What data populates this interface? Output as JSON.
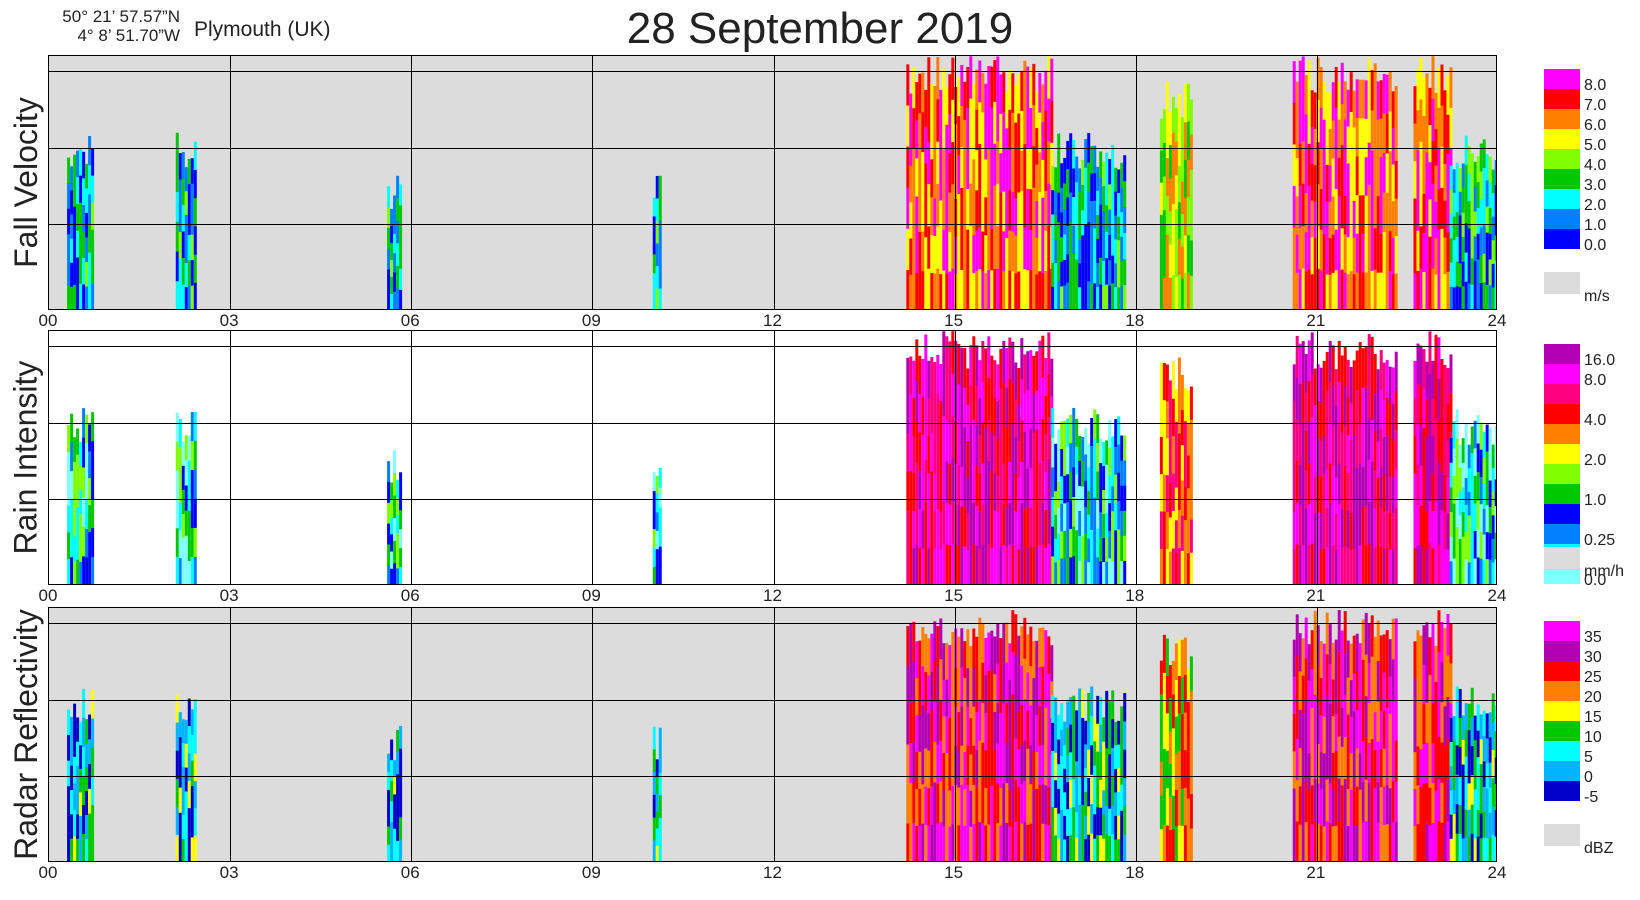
{
  "header": {
    "lat": "50° 21’ 57.57”N",
    "lon": "4°  8’ 51.70”W",
    "location": "Plymouth (UK)",
    "title": "28 September  2019"
  },
  "x_ticks": [
    "00",
    "03",
    "06",
    "09",
    "12",
    "15",
    "18",
    "21",
    "24"
  ],
  "colors": {
    "panel_bg_gray": "#dcdcdc",
    "panel_bg_white": "#ffffff",
    "nodata_swatch": "#dcdcdc"
  },
  "panels": [
    {
      "ylabel": "Fall Velocity",
      "unit": "m/s",
      "bg": "gray",
      "legend": [
        {
          "label": "8.0",
          "color": "#ff00ff"
        },
        {
          "label": "7.0",
          "color": "#ff0000"
        },
        {
          "label": "6.0",
          "color": "#ff8000"
        },
        {
          "label": "5.0",
          "color": "#ffff00"
        },
        {
          "label": "4.0",
          "color": "#80ff00"
        },
        {
          "label": "3.0",
          "color": "#00c800"
        },
        {
          "label": "2.0",
          "color": "#00ffff"
        },
        {
          "label": "1.0",
          "color": "#0080ff"
        },
        {
          "label": "0.0",
          "color": "#0000ff"
        }
      ]
    },
    {
      "ylabel": "Rain Intensity",
      "unit": "mm/h",
      "bg": "white",
      "legend": [
        {
          "label": "16.0",
          "color": "#b400b4"
        },
        {
          "label": "8.0",
          "color": "#ff00ff"
        },
        {
          "label": "",
          "color": "#ff0080"
        },
        {
          "label": "4.0",
          "color": "#ff0000"
        },
        {
          "label": "",
          "color": "#ff8000"
        },
        {
          "label": "2.0",
          "color": "#ffff00"
        },
        {
          "label": "",
          "color": "#80ff00"
        },
        {
          "label": "1.0",
          "color": "#00c800"
        },
        {
          "label": "",
          "color": "#0000ff"
        },
        {
          "label": "0.25",
          "color": "#0080ff"
        },
        {
          "label": "",
          "color": "#00ffff"
        },
        {
          "label": "0.0",
          "color": "#80ffff"
        }
      ]
    },
    {
      "ylabel": "Radar Reflectivity",
      "unit": "dBZ",
      "bg": "gray",
      "legend": [
        {
          "label": "35",
          "color": "#ff00ff"
        },
        {
          "label": "30",
          "color": "#b400b4"
        },
        {
          "label": "25",
          "color": "#ff0000"
        },
        {
          "label": "20",
          "color": "#ff8000"
        },
        {
          "label": "15",
          "color": "#ffff00"
        },
        {
          "label": "10",
          "color": "#00c800"
        },
        {
          "label": "5",
          "color": "#00ffff"
        },
        {
          "label": "0",
          "color": "#00b4ff"
        },
        {
          "label": "-5",
          "color": "#0000c8"
        }
      ]
    }
  ],
  "chart_data": {
    "type": "heatmap",
    "title": "28 September  2019",
    "x_range_hours": [
      0,
      24
    ],
    "x_ticks": [
      "00",
      "03",
      "06",
      "09",
      "12",
      "15",
      "18",
      "21",
      "24"
    ],
    "rain_events_hours": [
      {
        "start": 0.3,
        "end": 0.7,
        "level": "low"
      },
      {
        "start": 2.1,
        "end": 2.4,
        "level": "low"
      },
      {
        "start": 5.6,
        "end": 5.8,
        "level": "trace"
      },
      {
        "start": 10.0,
        "end": 10.1,
        "level": "trace"
      },
      {
        "start": 14.2,
        "end": 16.6,
        "level": "high"
      },
      {
        "start": 16.6,
        "end": 17.8,
        "level": "low"
      },
      {
        "start": 18.4,
        "end": 18.9,
        "level": "medium"
      },
      {
        "start": 20.6,
        "end": 22.3,
        "level": "high"
      },
      {
        "start": 22.6,
        "end": 23.2,
        "level": "high"
      },
      {
        "start": 23.2,
        "end": 24.0,
        "level": "low"
      }
    ]
  }
}
